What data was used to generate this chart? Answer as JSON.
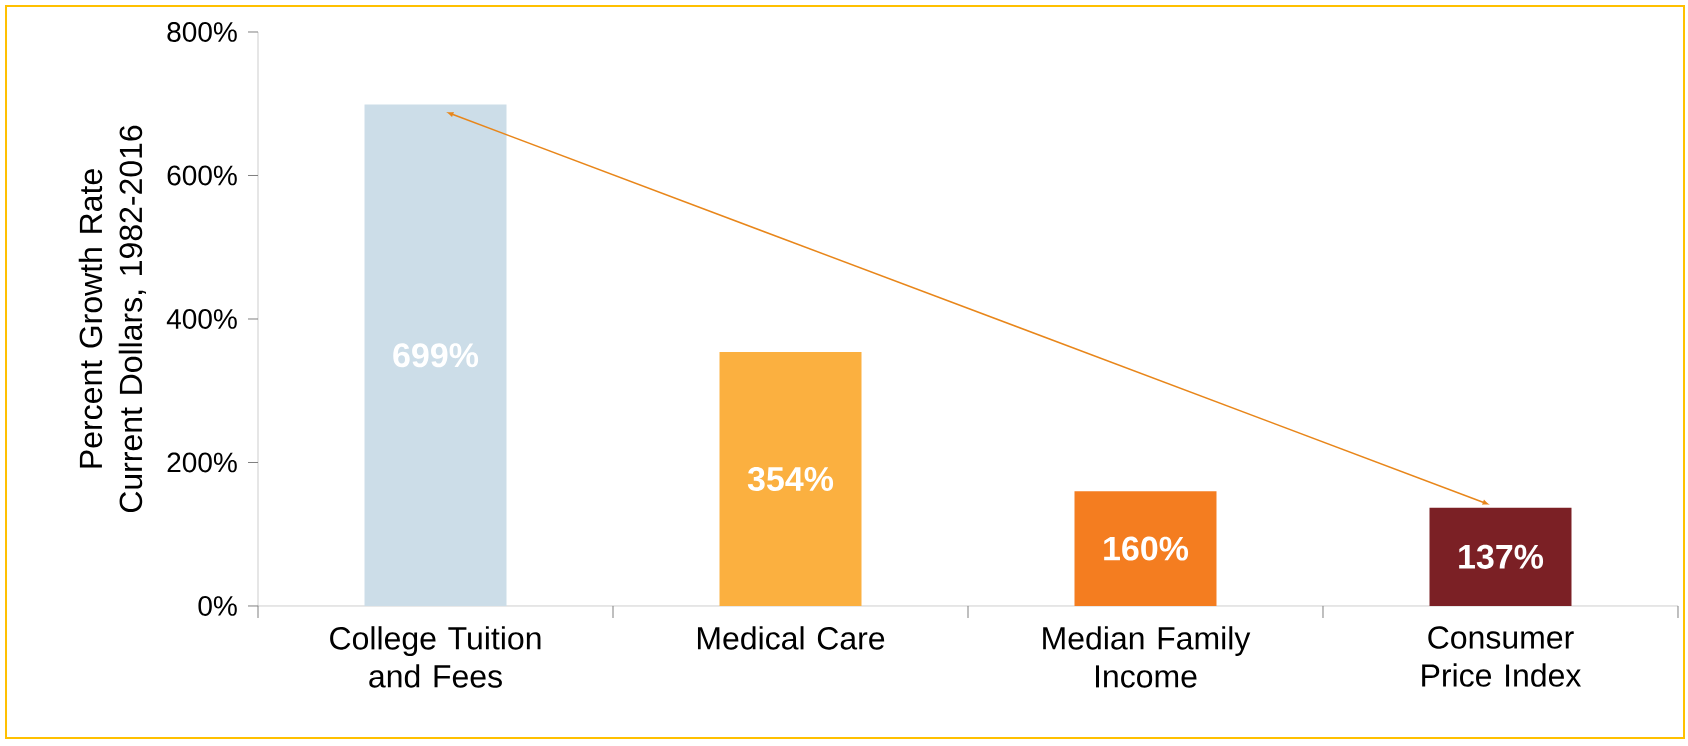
{
  "chart_data": {
    "type": "bar",
    "ylabel": "Percent Growth Rate Current Dollars, 1982-2016",
    "categories": [
      "College Tuition and Fees",
      "Medical Care",
      "Median Family Income",
      "Consumer Price Index"
    ],
    "values": [
      699,
      354,
      160,
      137
    ],
    "colors": [
      "#ccdde8",
      "#fbb040",
      "#f47d20",
      "#7b2025"
    ],
    "ylim": [
      0,
      800
    ],
    "yticks": [
      {
        "value": 0,
        "label": "0%"
      },
      {
        "value": 200,
        "label": "200%"
      },
      {
        "value": 400,
        "label": "400%"
      },
      {
        "value": 600,
        "label": "600%"
      },
      {
        "value": 800,
        "label": "800%"
      }
    ],
    "value_labels": [
      "699%",
      "354%",
      "160%",
      "137%"
    ],
    "grid": false
  }
}
